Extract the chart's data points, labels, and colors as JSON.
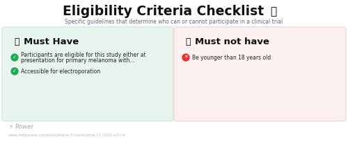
{
  "title": "Eligibility Criteria Checklist",
  "subtitle": "Specific guidelines that determine who can or cannot participate in a clinical trial",
  "left_panel": {
    "header_text": "Must Have",
    "bg_color": "#e8f5ee",
    "border_color": "#c5e8d5",
    "item1_line1": "Participants are eligible for this study either at",
    "item1_line2": "presentation for primary melanoma with...",
    "item2": "Accessible for electroporation"
  },
  "right_panel": {
    "header_text": "Must not have",
    "bg_color": "#fdf0f0",
    "border_color": "#f0d0d0",
    "item1": "Be younger than 18 years old"
  },
  "footer_url": "www.withpower.com/trial/phase-3-melanoma-11-2020-e7cc9",
  "bg_color": "#ffffff",
  "title_color": "#111111",
  "subtitle_color": "#666688",
  "text_color": "#222222",
  "green_color": "#22aa55",
  "red_color": "#e83030",
  "amber_color": "#e8a020",
  "purple_color": "#7755cc",
  "footer_color": "#aaaaaa"
}
